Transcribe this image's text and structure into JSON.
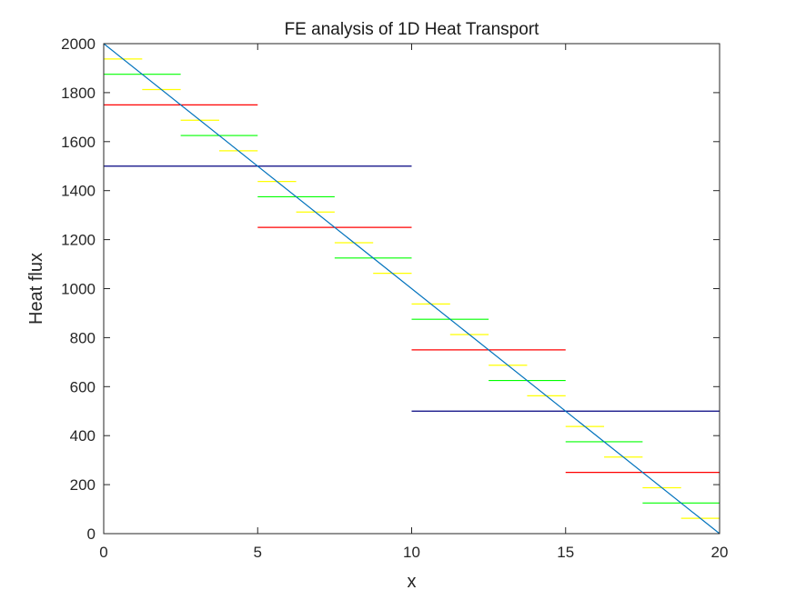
{
  "chart_data": {
    "type": "line",
    "title": "FE analysis of 1D Heat Transport",
    "xlabel": "x",
    "ylabel": "Heat flux",
    "xlim": [
      0,
      20
    ],
    "ylim": [
      0,
      2000
    ],
    "xticks": [
      "0",
      "5",
      "10",
      "15",
      "20"
    ],
    "yticks": [
      "0",
      "200",
      "400",
      "600",
      "800",
      "1000",
      "1200",
      "1400",
      "1600",
      "1800",
      "2000"
    ],
    "grid": false,
    "legend": "none",
    "series": [
      {
        "color": "#00007f",
        "segments": [
          {
            "x": [
              0,
              10
            ],
            "y": 1500
          },
          {
            "x": [
              10,
              20
            ],
            "y": 500
          }
        ]
      },
      {
        "color": "#ff0000",
        "segments": [
          {
            "x": [
              0,
              5
            ],
            "y": 1750
          },
          {
            "x": [
              5,
              10
            ],
            "y": 1250
          },
          {
            "x": [
              10,
              15
            ],
            "y": 750
          },
          {
            "x": [
              15,
              20
            ],
            "y": 250
          }
        ]
      },
      {
        "color": "#00ff00",
        "segments": [
          {
            "x": [
              0,
              2.5
            ],
            "y": 1875
          },
          {
            "x": [
              2.5,
              5
            ],
            "y": 1625
          },
          {
            "x": [
              5,
              7.5
            ],
            "y": 1375
          },
          {
            "x": [
              7.5,
              10
            ],
            "y": 1125
          },
          {
            "x": [
              10,
              12.5
            ],
            "y": 875
          },
          {
            "x": [
              12.5,
              15
            ],
            "y": 625
          },
          {
            "x": [
              15,
              17.5
            ],
            "y": 375
          },
          {
            "x": [
              17.5,
              20
            ],
            "y": 125
          }
        ]
      },
      {
        "color": "#ffff00",
        "segments": [
          {
            "x": [
              0,
              1.25
            ],
            "y": 1937.5
          },
          {
            "x": [
              1.25,
              2.5
            ],
            "y": 1812.5
          },
          {
            "x": [
              2.5,
              3.75
            ],
            "y": 1687.5
          },
          {
            "x": [
              3.75,
              5
            ],
            "y": 1562.5
          },
          {
            "x": [
              5,
              6.25
            ],
            "y": 1437.5
          },
          {
            "x": [
              6.25,
              7.5
            ],
            "y": 1312.5
          },
          {
            "x": [
              7.5,
              8.75
            ],
            "y": 1187.5
          },
          {
            "x": [
              8.75,
              10
            ],
            "y": 1062.5
          },
          {
            "x": [
              10,
              11.25
            ],
            "y": 937.5
          },
          {
            "x": [
              11.25,
              12.5
            ],
            "y": 812.5
          },
          {
            "x": [
              12.5,
              13.75
            ],
            "y": 687.5
          },
          {
            "x": [
              13.75,
              15
            ],
            "y": 562.5
          },
          {
            "x": [
              15,
              16.25
            ],
            "y": 437.5
          },
          {
            "x": [
              16.25,
              17.5
            ],
            "y": 312.5
          },
          {
            "x": [
              17.5,
              18.75
            ],
            "y": 187.5
          },
          {
            "x": [
              18.75,
              20
            ],
            "y": 62.5
          }
        ]
      },
      {
        "color": "#0072bd",
        "x": [
          0,
          20
        ],
        "y": [
          2000,
          0
        ]
      }
    ]
  }
}
